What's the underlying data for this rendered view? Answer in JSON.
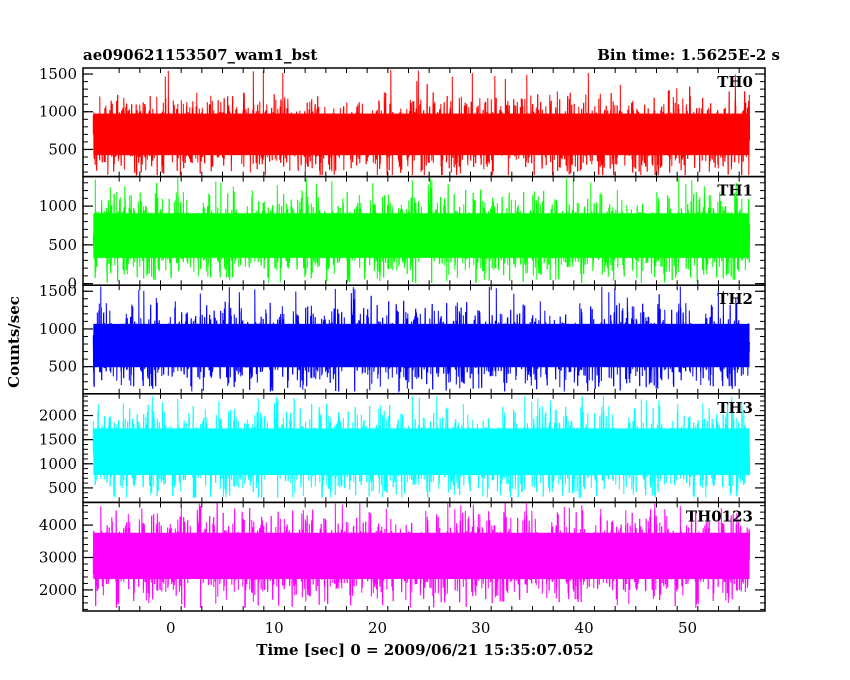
{
  "header": {
    "left_title": "ae090621153507_wam1_bst",
    "right_title": "Bin time: 1.5625E-2 s"
  },
  "chart_data": {
    "type": "line",
    "title": "ae090621153507_wam1_bst",
    "subtitle": "Bin time: 1.5625E-2 s",
    "xlabel": "Time [sec] 0 = 2009/06/21 15:35:07.052",
    "ylabel": "Counts/sec",
    "xlim": [
      -8.5,
      57.5
    ],
    "x_ticks": [
      0,
      10,
      20,
      30,
      40,
      50
    ],
    "data_x_range": [
      -7.5,
      56.0
    ],
    "grid": false,
    "legend": "none",
    "panels": [
      {
        "name": "TH0",
        "color": "#ff0000",
        "ylim": [
          140,
          1580
        ],
        "yticks": [
          500,
          1000,
          1500
        ],
        "mean": 700,
        "low": 160,
        "high": 1560,
        "noise": 240
      },
      {
        "name": "TH1",
        "color": "#00ff00",
        "ylim": [
          -20,
          1380
        ],
        "yticks": [
          0,
          500,
          1000
        ],
        "mean": 620,
        "low": 10,
        "high": 1370,
        "noise": 250
      },
      {
        "name": "TH2",
        "color": "#0000ff",
        "ylim": [
          140,
          1580
        ],
        "yticks": [
          500,
          1000,
          1500
        ],
        "mean": 780,
        "low": 170,
        "high": 1570,
        "noise": 250
      },
      {
        "name": "TH3",
        "color": "#00ffff",
        "ylim": [
          200,
          2450
        ],
        "yticks": [
          500,
          1000,
          1500,
          2000
        ],
        "mean": 1250,
        "low": 300,
        "high": 2420,
        "noise": 420
      },
      {
        "name": "TH0123",
        "color": "#ff00ff",
        "ylim": [
          1350,
          4700
        ],
        "yticks": [
          2000,
          3000,
          4000
        ],
        "mean": 3050,
        "low": 1450,
        "high": 4700,
        "noise": 620
      }
    ]
  }
}
